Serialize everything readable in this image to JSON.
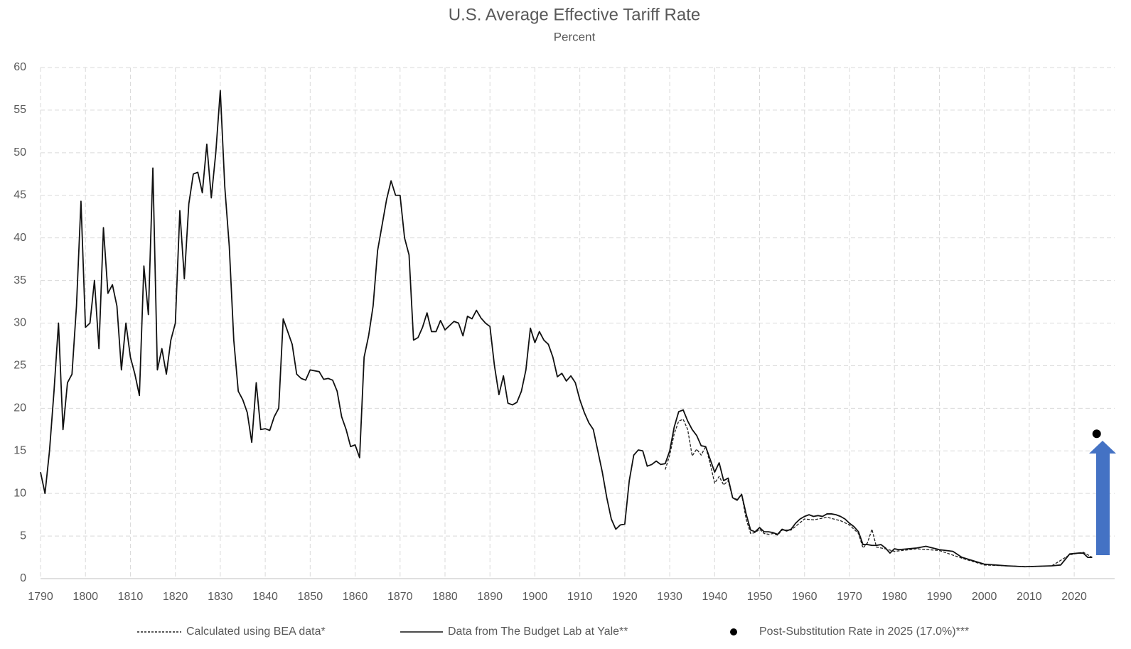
{
  "chart_data": {
    "type": "line",
    "title": "U.S. Average Effective Tariff Rate",
    "subtitle": "Percent",
    "xlim": [
      1790,
      2029
    ],
    "xticks": [
      1790,
      1800,
      1810,
      1820,
      1830,
      1840,
      1850,
      1860,
      1870,
      1880,
      1890,
      1900,
      1910,
      1920,
      1930,
      1940,
      1950,
      1960,
      1970,
      1980,
      1990,
      2000,
      2010,
      2020
    ],
    "ylim": [
      0,
      60
    ],
    "yticks": [
      0,
      5,
      10,
      15,
      20,
      25,
      30,
      35,
      40,
      45,
      50,
      55,
      60
    ],
    "grid": true,
    "series": [
      {
        "name": "Calculated using BEA data*",
        "color": "#222222",
        "style": "dashed",
        "x": [
          1929,
          1930,
          1931,
          1932,
          1933,
          1934,
          1935,
          1936,
          1937,
          1938,
          1939,
          1940,
          1941,
          1942,
          1943,
          1944,
          1945,
          1946,
          1947,
          1948,
          1949,
          1950,
          1951,
          1952,
          1953,
          1954,
          1955,
          1957,
          1960,
          1962,
          1965,
          1968,
          1970,
          1972,
          1973,
          1974,
          1975,
          1976,
          1978,
          1980,
          1985,
          1990,
          1995,
          2000,
          2005,
          2010,
          2015,
          2019,
          2022,
          2024
        ],
        "values": [
          12.8,
          14.5,
          17,
          18.5,
          18.7,
          17.5,
          14.4,
          15.2,
          14.5,
          15.5,
          13.5,
          11.2,
          12,
          11,
          11.5,
          9.5,
          9.3,
          9.9,
          7,
          5.3,
          5.4,
          5.8,
          5.3,
          5.2,
          5.3,
          5.1,
          5.7,
          5.7,
          7,
          6.9,
          7.2,
          6.8,
          6.3,
          5.3,
          3.6,
          4.2,
          5.8,
          3.7,
          3.5,
          3.2,
          3.5,
          3.3,
          2.4,
          1.6,
          1.5,
          1.4,
          1.5,
          2.8,
          3.1,
          2.5
        ]
      },
      {
        "name": "Data from The Budget Lab at Yale**",
        "color": "#111111",
        "style": "solid",
        "x": [
          1790,
          1791,
          1792,
          1793,
          1794,
          1795,
          1796,
          1797,
          1798,
          1799,
          1800,
          1801,
          1802,
          1803,
          1804,
          1805,
          1806,
          1807,
          1808,
          1809,
          1810,
          1811,
          1812,
          1813,
          1814,
          1815,
          1816,
          1817,
          1818,
          1819,
          1820,
          1821,
          1822,
          1823,
          1824,
          1825,
          1826,
          1827,
          1828,
          1829,
          1830,
          1831,
          1832,
          1833,
          1834,
          1835,
          1836,
          1837,
          1838,
          1839,
          1840,
          1841,
          1842,
          1843,
          1844,
          1845,
          1846,
          1847,
          1848,
          1849,
          1850,
          1851,
          1852,
          1853,
          1854,
          1855,
          1856,
          1857,
          1858,
          1859,
          1860,
          1861,
          1862,
          1863,
          1864,
          1865,
          1866,
          1867,
          1868,
          1869,
          1870,
          1871,
          1872,
          1873,
          1874,
          1875,
          1876,
          1877,
          1878,
          1879,
          1880,
          1881,
          1882,
          1883,
          1884,
          1885,
          1886,
          1887,
          1888,
          1889,
          1890,
          1891,
          1892,
          1893,
          1894,
          1895,
          1896,
          1897,
          1898,
          1899,
          1900,
          1901,
          1902,
          1903,
          1904,
          1905,
          1906,
          1907,
          1908,
          1909,
          1910,
          1911,
          1912,
          1913,
          1914,
          1915,
          1916,
          1917,
          1918,
          1919,
          1920,
          1921,
          1922,
          1923,
          1924,
          1925,
          1926,
          1927,
          1928,
          1929,
          1930,
          1931,
          1932,
          1933,
          1934,
          1935,
          1936,
          1937,
          1938,
          1939,
          1940,
          1941,
          1942,
          1943,
          1944,
          1945,
          1946,
          1947,
          1948,
          1949,
          1950,
          1951,
          1952,
          1953,
          1954,
          1955,
          1956,
          1957,
          1958,
          1959,
          1960,
          1961,
          1962,
          1963,
          1964,
          1965,
          1966,
          1967,
          1968,
          1969,
          1970,
          1971,
          1972,
          1973,
          1974,
          1975,
          1976,
          1977,
          1978,
          1979,
          1980,
          1981,
          1985,
          1987,
          1990,
          1993,
          1995,
          2000,
          2005,
          2009,
          2015,
          2017,
          2019,
          2021,
          2022,
          2023,
          2024
        ],
        "values": [
          12.5,
          10,
          15,
          22,
          30,
          17.5,
          23,
          24,
          32,
          44.3,
          29.5,
          30,
          35,
          27,
          41.2,
          33.5,
          34.5,
          32,
          24.5,
          30,
          26,
          24,
          21.5,
          36.7,
          31,
          48.2,
          24.5,
          27,
          24,
          28,
          30,
          43.2,
          35.2,
          44,
          47.5,
          47.7,
          45.3,
          51,
          44.7,
          50,
          57.3,
          46,
          39,
          28,
          22,
          21,
          19.5,
          16,
          23,
          17.5,
          17.6,
          17.4,
          19,
          20,
          30.5,
          29,
          27.5,
          24,
          23.5,
          23.3,
          24.5,
          24.4,
          24.3,
          23.4,
          23.5,
          23.3,
          22,
          19,
          17.5,
          15.5,
          15.7,
          14.2,
          26,
          28.5,
          32,
          38.5,
          41.5,
          44.5,
          46.7,
          45,
          45,
          40,
          38,
          28,
          28.3,
          29.5,
          31.2,
          29,
          29,
          30.3,
          29.2,
          29.7,
          30.2,
          30,
          28.5,
          30.8,
          30.5,
          31.5,
          30.6,
          30,
          29.6,
          25,
          21.6,
          23.8,
          20.6,
          20.4,
          20.7,
          22,
          24.5,
          29.4,
          27.7,
          29,
          28,
          27.5,
          26,
          23.7,
          24.1,
          23.2,
          23.8,
          23,
          21,
          19.5,
          18.3,
          17.5,
          15,
          12.5,
          9.5,
          7,
          5.8,
          6.3,
          6.4,
          11.5,
          14.5,
          15.1,
          15,
          13.2,
          13.4,
          13.8,
          13.4,
          13.5,
          15,
          17.8,
          19.6,
          19.8,
          18.5,
          17.5,
          16.8,
          15.6,
          15.5,
          14,
          12.5,
          13.6,
          11.5,
          11.8,
          9.5,
          9.2,
          9.9,
          7.6,
          5.7,
          5.5,
          6,
          5.5,
          5.5,
          5.4,
          5.2,
          5.8,
          5.6,
          5.8,
          6.5,
          7,
          7.3,
          7.5,
          7.3,
          7.4,
          7.3,
          7.6,
          7.6,
          7.5,
          7.3,
          7,
          6.5,
          6.1,
          5.5,
          4,
          4,
          3.9,
          3.9,
          4,
          3.6,
          3,
          3.5,
          3.4,
          3.6,
          3.8,
          3.4,
          3.2,
          2.5,
          1.7,
          1.5,
          1.4,
          1.5,
          1.6,
          2.9,
          3,
          3,
          2.5,
          2.5
        ]
      },
      {
        "name": "Post-Substitution Rate in 2025 (17.0%)***",
        "color": "#000000",
        "style": "point",
        "x": [
          2025
        ],
        "values": [
          17.0
        ]
      }
    ]
  }
}
